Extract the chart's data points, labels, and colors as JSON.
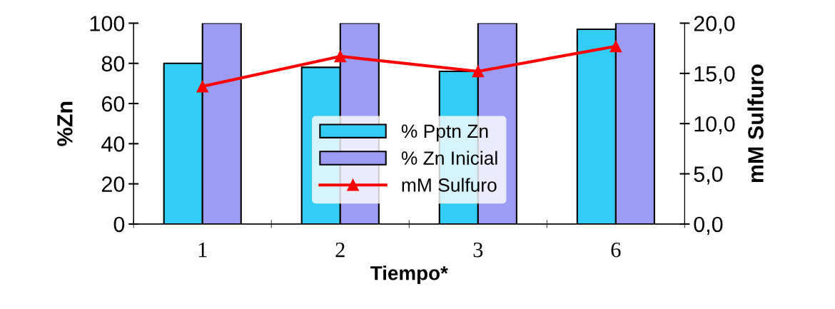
{
  "chart_data": {
    "type": "bar",
    "xlabel": "Tiempo*",
    "ylabel": "%Zn",
    "y2label": "mM Sulfuro",
    "categories": [
      "1",
      "2",
      "3",
      "6"
    ],
    "series": [
      {
        "name": "% Pptn Zn",
        "color": "#33ccf5",
        "values": [
          80,
          78,
          76,
          97
        ]
      },
      {
        "name": "% Zn Inicial",
        "color": "#9c9cf5",
        "values": [
          100,
          100,
          100,
          100
        ]
      },
      {
        "name": "mM Sulfuro",
        "type": "line",
        "axis": "y2",
        "color": "#ff0000",
        "values": [
          13.7,
          16.7,
          15.2,
          17.7
        ],
        "marker": "triangle",
        "line_style": "solid"
      }
    ],
    "ylim": [
      0,
      100
    ],
    "yticks": [
      0,
      20,
      40,
      60,
      80,
      100
    ],
    "y2lim": [
      0,
      20
    ],
    "y2ticks": [
      {
        "value": 0,
        "label": "0,0"
      },
      {
        "value": 5,
        "label": "5,0"
      },
      {
        "value": 10,
        "label": "10,0"
      },
      {
        "value": 15,
        "label": "15,0"
      },
      {
        "value": 20,
        "label": "20,0"
      }
    ],
    "grid": false,
    "legend": "center"
  }
}
